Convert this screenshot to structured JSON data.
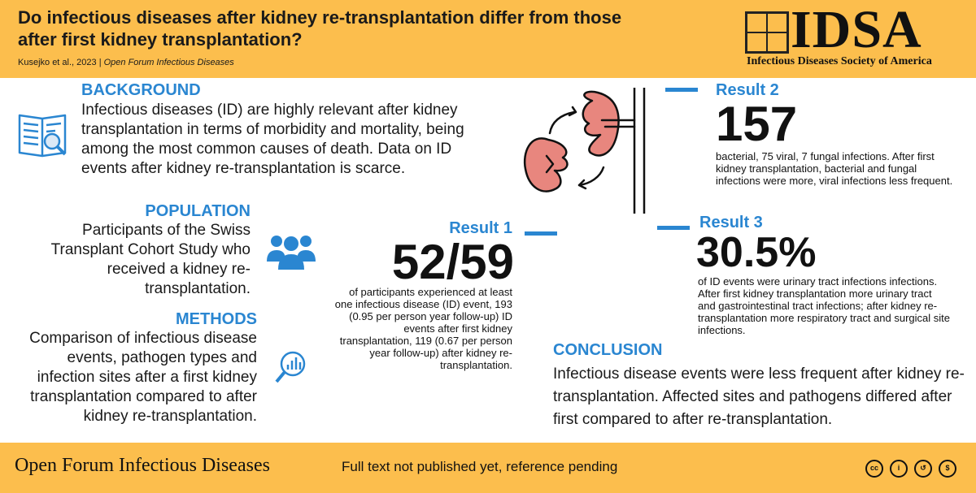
{
  "header": {
    "title": "Do infectious diseases after kidney re-transplantation differ from those after first kidney transplantation?",
    "citation_authors": "Kusejko et al., 2023",
    "citation_separator": "|",
    "citation_journal": "Open Forum Infectious Diseases",
    "logo_text": "IDSA",
    "logo_subtitle": "Infectious Diseases Society of America"
  },
  "background": {
    "heading": "BACKGROUND",
    "text": "Infectious diseases (ID) are highly relevant after kidney transplantation in terms of morbidity and mortality, being among the most common causes of death. Data on ID events after kidney re-transplantation is scarce."
  },
  "population": {
    "heading": "POPULATION",
    "text": "Participants of the Swiss Transplant Cohort Study who received a kidney re-transplantation."
  },
  "methods": {
    "heading": "METHODS",
    "text": "Comparison of infectious disease events, pathogen types and infection sites after a first kidney transplantation compared to after kidney re-transplantation."
  },
  "result1": {
    "label": "Result 1",
    "value": "52/59",
    "text": "of participants experienced at least one infectious disease (ID) event, 193 (0.95 per person year follow-up) ID events after first kidney transplantation, 119 (0.67 per person year follow-up) after kidney re-transplantation."
  },
  "result2": {
    "label": "Result 2",
    "value": "157",
    "text": "bacterial, 75 viral, 7 fungal infections. After first kidney transplantation, bacterial and fungal infections were more, viral infections less frequent."
  },
  "result3": {
    "label": "Result 3",
    "value": "30.5%",
    "text": "of ID events were urinary tract infections infections. After first kidney transplantation more urinary tract and gastrointestinal tract infections; after kidney re-transplantation more respiratory tract and surgical site infections."
  },
  "conclusion": {
    "heading": "CONCLUSION",
    "text": "Infectious disease events were less frequent after kidney re-transplantation. Affected sites and pathogens differed after first compared to after re-transplantation."
  },
  "footer": {
    "journal": "Open Forum Infectious Diseases",
    "note": "Full text not published yet, reference pending"
  },
  "icons": [
    "book-magnifier-icon",
    "people-group-icon",
    "chart-magnifier-icon",
    "kidney-transplant-icon",
    "cc-icon",
    "by-icon",
    "sa-icon",
    "nc-icon"
  ],
  "colors": {
    "accent_yellow": "#fcbe4d",
    "accent_blue": "#2a86d1",
    "kidney_pink": "#e8867e"
  }
}
